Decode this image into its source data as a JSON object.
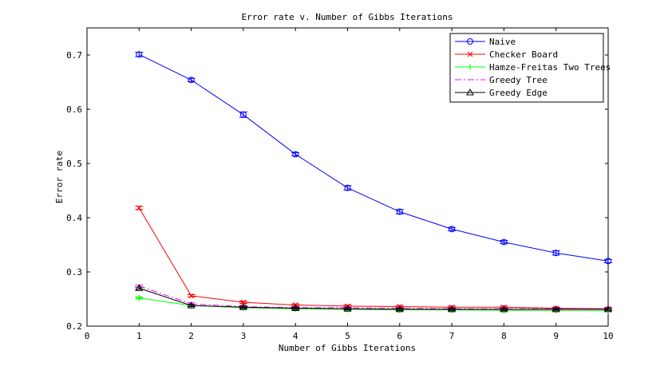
{
  "chart_data": {
    "type": "line",
    "title": "Error rate v. Number of Gibbs Iterations",
    "xlabel": "Number of Gibbs Iterations",
    "ylabel": "Error rate",
    "xlim": [
      0,
      10
    ],
    "ylim": [
      0.2,
      0.75
    ],
    "xticks": [
      0,
      1,
      2,
      3,
      4,
      5,
      6,
      7,
      8,
      9,
      10
    ],
    "yticks": [
      0.2,
      0.3,
      0.4,
      0.5,
      0.6,
      0.7
    ],
    "ytick_labels": [
      "0.2",
      "0.3",
      "0.4",
      "0.5",
      "0.6",
      "0.7"
    ],
    "grid": false,
    "legend_position": "top-right",
    "x": [
      1,
      2,
      3,
      4,
      5,
      6,
      7,
      8,
      9,
      10
    ],
    "series": [
      {
        "name": "Naive",
        "color": "#0000ff",
        "marker": "circle",
        "dash": "solid",
        "values": [
          0.701,
          0.654,
          0.59,
          0.517,
          0.455,
          0.411,
          0.379,
          0.355,
          0.335,
          0.32
        ],
        "errors": [
          0.004,
          0.003,
          0.005,
          0.003,
          0.004,
          0.004,
          0.003,
          0.003,
          0.004,
          0.003
        ]
      },
      {
        "name": "Checker Board",
        "color": "#ff0000",
        "marker": "x",
        "dash": "solid",
        "values": [
          0.418,
          0.256,
          0.244,
          0.239,
          0.237,
          0.236,
          0.235,
          0.235,
          0.233,
          0.232
        ],
        "errors": [
          0.003,
          0.002,
          0.002,
          0.002,
          0.002,
          0.002,
          0.002,
          0.002,
          0.002,
          0.002
        ]
      },
      {
        "name": "Hamze-Freitas Two Trees",
        "color": "#00ff00",
        "marker": "plus",
        "dash": "solid",
        "values": [
          0.252,
          0.238,
          0.234,
          0.232,
          0.231,
          0.23,
          0.23,
          0.229,
          0.229,
          0.229
        ],
        "errors": [
          0.002,
          0.002,
          0.002,
          0.002,
          0.002,
          0.002,
          0.002,
          0.002,
          0.002,
          0.002
        ]
      },
      {
        "name": "Greedy Tree",
        "color": "#ff00ff",
        "marker": "none",
        "dash": "dashdot",
        "values": [
          0.274,
          0.241,
          0.236,
          0.234,
          0.234,
          0.233,
          0.232,
          0.232,
          0.232,
          0.232
        ],
        "errors": [
          0.002,
          0.002,
          0.002,
          0.002,
          0.002,
          0.002,
          0.002,
          0.002,
          0.002,
          0.002
        ]
      },
      {
        "name": "Greedy Edge",
        "color": "#000000",
        "marker": "triangle",
        "dash": "solid",
        "values": [
          0.27,
          0.238,
          0.235,
          0.233,
          0.232,
          0.231,
          0.231,
          0.231,
          0.231,
          0.231
        ],
        "errors": [
          0.002,
          0.002,
          0.002,
          0.002,
          0.002,
          0.002,
          0.002,
          0.002,
          0.002,
          0.002
        ]
      }
    ]
  }
}
